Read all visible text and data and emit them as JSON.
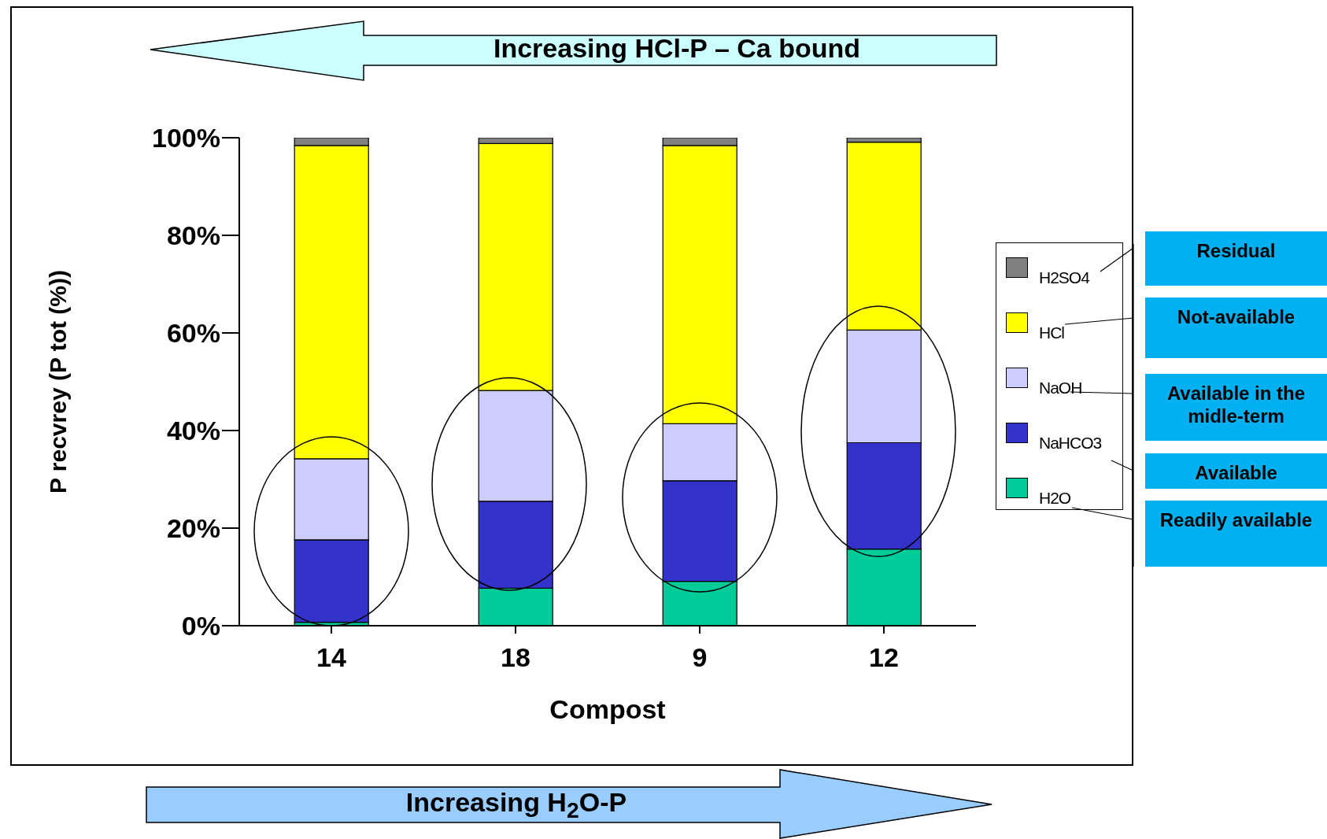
{
  "chart_data": {
    "type": "bar",
    "stacked": true,
    "xlabel": "Compost",
    "ylabel": "P recvrey (P tot (%))",
    "categories": [
      "14",
      "18",
      "9",
      "12"
    ],
    "series": [
      {
        "name": "H2O",
        "color": "#00cc99",
        "values": [
          0.7,
          7.7,
          9.1,
          15.7
        ]
      },
      {
        "name": "NaHCO3",
        "color": "#3333cc",
        "values": [
          16.9,
          17.8,
          20.6,
          21.8
        ]
      },
      {
        "name": "NaOH",
        "color": "#ccccff",
        "values": [
          16.6,
          22.7,
          11.7,
          23.1
        ]
      },
      {
        "name": "HCl",
        "color": "#ffff00",
        "values": [
          64.2,
          50.6,
          57.0,
          38.5
        ]
      },
      {
        "name": "H2SO4",
        "color": "#808080",
        "values": [
          1.6,
          1.2,
          1.6,
          0.9
        ]
      }
    ],
    "ylim": [
      0,
      100
    ],
    "yticks": [
      {
        "value": 0,
        "label": "0%"
      },
      {
        "value": 20,
        "label": "20%"
      },
      {
        "value": 40,
        "label": "40%"
      },
      {
        "value": 60,
        "label": "60%"
      },
      {
        "value": 80,
        "label": "80%"
      },
      {
        "value": 100,
        "label": "100%"
      }
    ],
    "legend": "right",
    "grid": false,
    "annotations": [
      "Increasing HCl-P – Ca bound",
      "Increasing H$_{2}$O-P",
      "Residual",
      "Not-available",
      "Available in the midle-term",
      "Available",
      "Readily available"
    ]
  }
}
